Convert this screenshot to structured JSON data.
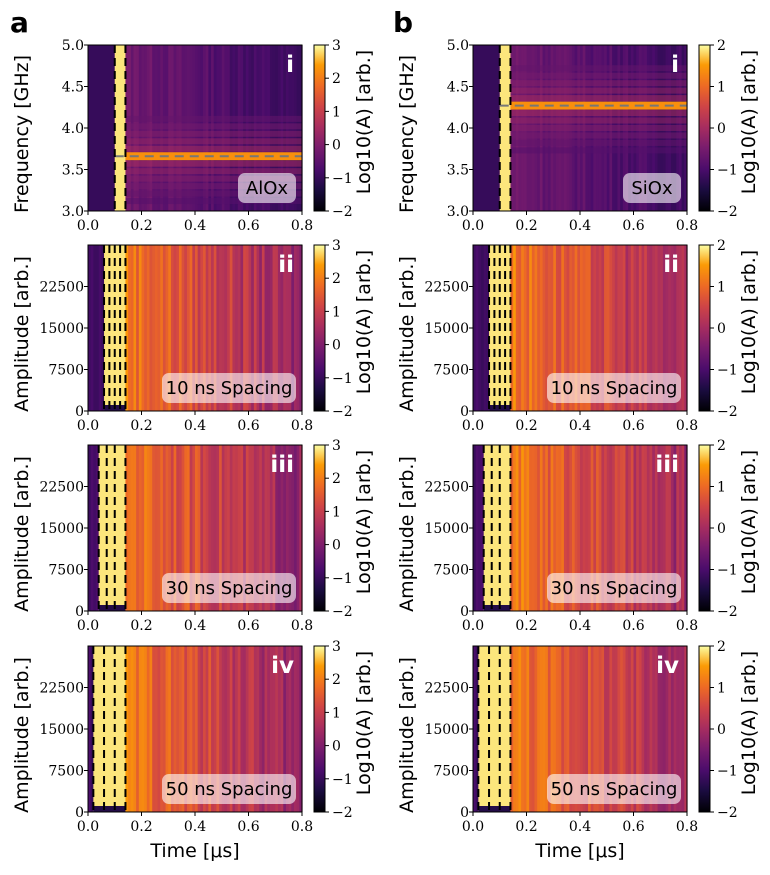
{
  "column_labels": [
    "a",
    "b"
  ],
  "chart_data": [
    {
      "type": "heatmap",
      "column": "a",
      "row": "i",
      "material_label": "AlOx",
      "roman": "i",
      "ylabel": "Frequency [GHz]",
      "xlabel": "",
      "xlim": [
        0,
        0.8
      ],
      "ylim": [
        3.0,
        5.0
      ],
      "xticks": [
        "0.0",
        "0.2",
        "0.4",
        "0.6",
        "0.8"
      ],
      "yticks": [
        "3.0",
        "3.5",
        "4.0",
        "4.5",
        "5.0"
      ],
      "colorbar_label": "Log10(A) [arb.]",
      "colorbar_range": [
        -2,
        3
      ],
      "colorbar_ticks": [
        "−2",
        "−1",
        "0",
        "1",
        "2",
        "3"
      ],
      "pulse_lines_us": [
        0.1,
        0.14
      ],
      "resonance_ghz": 3.66,
      "colormap": "inferno"
    },
    {
      "type": "heatmap",
      "column": "b",
      "row": "i",
      "material_label": "SiOx",
      "roman": "i",
      "ylabel": "Frequency [GHz]",
      "xlabel": "",
      "xlim": [
        0,
        0.8
      ],
      "ylim": [
        3.0,
        5.0
      ],
      "xticks": [
        "0.0",
        "0.2",
        "0.4",
        "0.6",
        "0.8"
      ],
      "yticks": [
        "3.0",
        "3.5",
        "4.0",
        "4.5",
        "5.0"
      ],
      "colorbar_label": "Log10(A) [arb.]",
      "colorbar_range": [
        -2,
        2
      ],
      "colorbar_ticks": [
        "−2",
        "−1",
        "0",
        "1",
        "2"
      ],
      "pulse_lines_us": [
        0.1,
        0.14
      ],
      "resonance_ghz": 4.27,
      "colormap": "inferno"
    },
    {
      "type": "heatmap",
      "column": "a",
      "row": "ii",
      "spacing_label": "10 ns Spacing",
      "roman": "ii",
      "ylabel": "Amplitude [arb.]",
      "xlabel": "",
      "xlim": [
        0,
        0.8
      ],
      "ylim": [
        0,
        30000
      ],
      "xticks": [
        "0.0",
        "0.2",
        "0.4",
        "0.6",
        "0.8"
      ],
      "yticks": [
        "0",
        "7500",
        "15000",
        "22500"
      ],
      "colorbar_label": "Log10(A) [arb.]",
      "colorbar_range": [
        -2,
        3
      ],
      "colorbar_ticks": [
        "−2",
        "−1",
        "0",
        "1",
        "2",
        "3"
      ],
      "pulse_lines_us": [
        0.06,
        0.08,
        0.1,
        0.12,
        0.14
      ],
      "colormap": "inferno"
    },
    {
      "type": "heatmap",
      "column": "b",
      "row": "ii",
      "spacing_label": "10 ns Spacing",
      "roman": "ii",
      "ylabel": "Amplitude [arb.]",
      "xlabel": "",
      "xlim": [
        0,
        0.8
      ],
      "ylim": [
        0,
        30000
      ],
      "xticks": [
        "0.0",
        "0.2",
        "0.4",
        "0.6",
        "0.8"
      ],
      "yticks": [
        "0",
        "7500",
        "15000",
        "22500"
      ],
      "colorbar_label": "Log10(A) [arb.]",
      "colorbar_range": [
        -2,
        2
      ],
      "colorbar_ticks": [
        "−2",
        "−1",
        "0",
        "1",
        "2"
      ],
      "pulse_lines_us": [
        0.06,
        0.08,
        0.1,
        0.12,
        0.14
      ],
      "colormap": "inferno"
    },
    {
      "type": "heatmap",
      "column": "a",
      "row": "iii",
      "spacing_label": "30 ns Spacing",
      "roman": "iii",
      "ylabel": "Amplitude [arb.]",
      "xlabel": "",
      "xlim": [
        0,
        0.8
      ],
      "ylim": [
        0,
        30000
      ],
      "xticks": [
        "0.0",
        "0.2",
        "0.4",
        "0.6",
        "0.8"
      ],
      "yticks": [
        "0",
        "7500",
        "15000",
        "22500"
      ],
      "colorbar_label": "Log10(A) [arb.]",
      "colorbar_range": [
        -2,
        3
      ],
      "colorbar_ticks": [
        "−2",
        "−1",
        "0",
        "1",
        "2",
        "3"
      ],
      "pulse_lines_us": [
        0.04,
        0.07,
        0.1,
        0.14
      ],
      "colormap": "inferno"
    },
    {
      "type": "heatmap",
      "column": "b",
      "row": "iii",
      "spacing_label": "30 ns Spacing",
      "roman": "iii",
      "ylabel": "Amplitude [arb.]",
      "xlabel": "",
      "xlim": [
        0,
        0.8
      ],
      "ylim": [
        0,
        30000
      ],
      "xticks": [
        "0.0",
        "0.2",
        "0.4",
        "0.6",
        "0.8"
      ],
      "yticks": [
        "0",
        "7500",
        "15000",
        "22500"
      ],
      "colorbar_label": "Log10(A) [arb.]",
      "colorbar_range": [
        -2,
        2
      ],
      "colorbar_ticks": [
        "−2",
        "−1",
        "0",
        "1",
        "2"
      ],
      "pulse_lines_us": [
        0.04,
        0.07,
        0.1,
        0.14
      ],
      "colormap": "inferno"
    },
    {
      "type": "heatmap",
      "column": "a",
      "row": "iv",
      "spacing_label": "50 ns Spacing",
      "roman": "iv",
      "ylabel": "Amplitude [arb.]",
      "xlabel": "Time [μs]",
      "xlim": [
        0,
        0.8
      ],
      "ylim": [
        0,
        30000
      ],
      "xticks": [
        "0.0",
        "0.2",
        "0.4",
        "0.6",
        "0.8"
      ],
      "yticks": [
        "0",
        "7500",
        "15000",
        "22500"
      ],
      "colorbar_label": "Log10(A) [arb.]",
      "colorbar_range": [
        -2,
        3
      ],
      "colorbar_ticks": [
        "−2",
        "−1",
        "0",
        "1",
        "2",
        "3"
      ],
      "pulse_lines_us": [
        0.02,
        0.06,
        0.1,
        0.14
      ],
      "colormap": "inferno"
    },
    {
      "type": "heatmap",
      "column": "b",
      "row": "iv",
      "spacing_label": "50 ns Spacing",
      "roman": "iv",
      "ylabel": "Amplitude [arb.]",
      "xlabel": "Time [μs]",
      "xlim": [
        0,
        0.8
      ],
      "ylim": [
        0,
        30000
      ],
      "xticks": [
        "0.0",
        "0.2",
        "0.4",
        "0.6",
        "0.8"
      ],
      "yticks": [
        "0",
        "7500",
        "15000",
        "22500"
      ],
      "colorbar_label": "Log10(A) [arb.]",
      "colorbar_range": [
        -2,
        2
      ],
      "colorbar_ticks": [
        "−2",
        "−1",
        "0",
        "1",
        "2"
      ],
      "pulse_lines_us": [
        0.02,
        0.06,
        0.1,
        0.14
      ],
      "colormap": "inferno"
    }
  ]
}
